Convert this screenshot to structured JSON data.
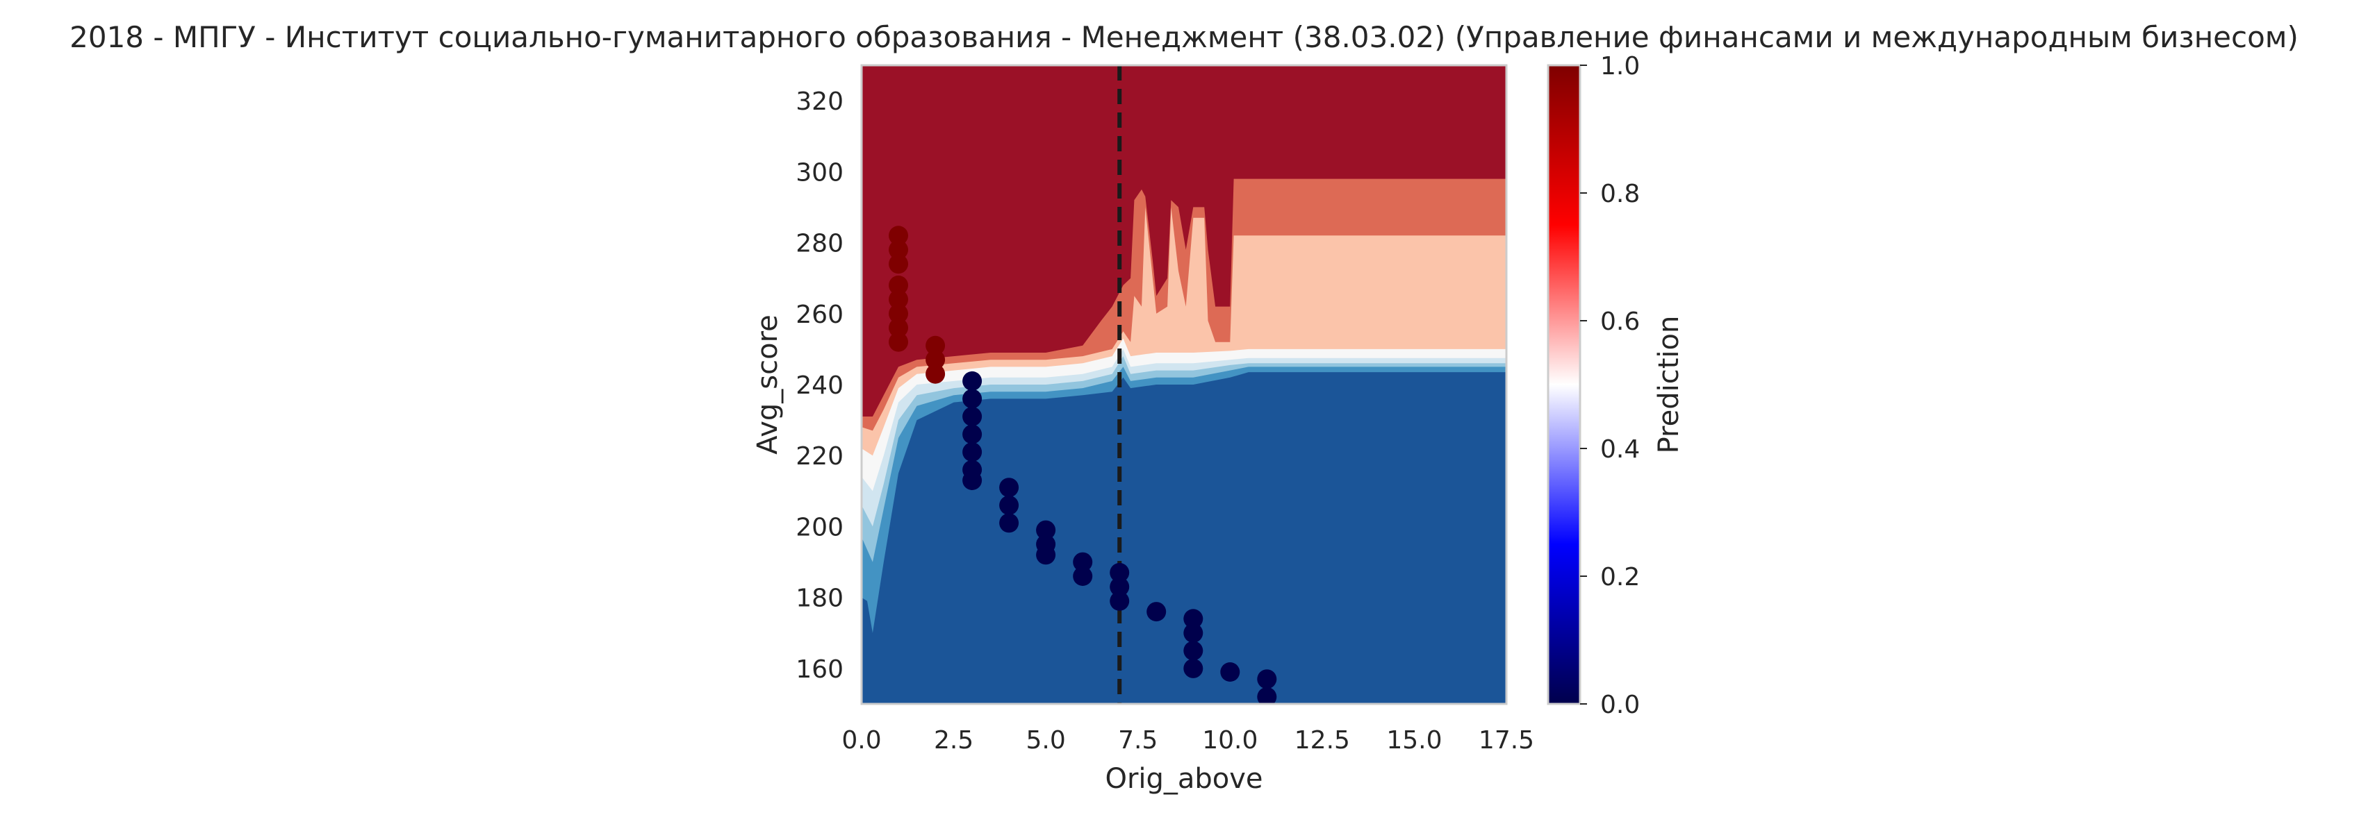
{
  "chart_data": {
    "type": "heatmap",
    "title": "2018 - МПГУ - Институт социально-гуманитарного образования - Менеджмент (38.03.02) (Управление финансами и международным бизнесом)",
    "xlabel": "Orig_above",
    "ylabel": "Avg_score",
    "xlim": [
      0,
      17.5
    ],
    "ylim": [
      150,
      330
    ],
    "xticks": [
      0.0,
      2.5,
      5.0,
      7.5,
      10.0,
      12.5,
      15.0,
      17.5
    ],
    "xtick_labels": [
      "0.0",
      "2.5",
      "5.0",
      "7.5",
      "10.0",
      "12.5",
      "15.0",
      "17.5"
    ],
    "yticks": [
      160,
      180,
      200,
      220,
      240,
      260,
      280,
      300,
      320
    ],
    "ytick_labels": [
      "160",
      "180",
      "200",
      "220",
      "240",
      "260",
      "280",
      "300",
      "320"
    ],
    "grid": false,
    "colorbar": {
      "label": "Prediction",
      "range": [
        0,
        1
      ],
      "ticks": [
        0.0,
        0.2,
        0.4,
        0.6,
        0.8,
        1.0
      ],
      "tick_labels": [
        "0.0",
        "0.2",
        "0.4",
        "0.6",
        "0.8",
        "1.0"
      ],
      "colors": [
        "#00004c",
        "#0000ff",
        "#ffffff",
        "#ff0000",
        "#7f0000"
      ]
    },
    "reference_line": {
      "x": 7,
      "style": "dashed",
      "color": "#1a1a1a"
    },
    "contour_bands": [
      {
        "name": "band-0.0-0.1",
        "color": "#1b5598",
        "boundary": [
          [
            0,
            180
          ],
          [
            0.15,
            179
          ],
          [
            0.3,
            170
          ],
          [
            0.6,
            190
          ],
          [
            1.0,
            215
          ],
          [
            1.5,
            230
          ],
          [
            2.5,
            235
          ],
          [
            3.5,
            236
          ],
          [
            5,
            236
          ],
          [
            6,
            237
          ],
          [
            6.8,
            238
          ],
          [
            7.1,
            242
          ],
          [
            7.3,
            239
          ],
          [
            8,
            240
          ],
          [
            9,
            240
          ],
          [
            10,
            242
          ],
          [
            10.5,
            243.5
          ],
          [
            12,
            243.5
          ],
          [
            15,
            243.5
          ],
          [
            17.5,
            243.5
          ]
        ]
      },
      {
        "name": "band-0.1-0.3",
        "color": "#4393c3",
        "boundary": [
          [
            0,
            197
          ],
          [
            0.3,
            190
          ],
          [
            0.6,
            205
          ],
          [
            1.0,
            225
          ],
          [
            1.5,
            234
          ],
          [
            2.5,
            237
          ],
          [
            3.5,
            238
          ],
          [
            5,
            238
          ],
          [
            6,
            239
          ],
          [
            6.8,
            241
          ],
          [
            7.1,
            245
          ],
          [
            7.3,
            241
          ],
          [
            8,
            242
          ],
          [
            9,
            242
          ],
          [
            10,
            244
          ],
          [
            10.5,
            245
          ],
          [
            12,
            245
          ],
          [
            15,
            245
          ],
          [
            17.5,
            245
          ]
        ]
      },
      {
        "name": "band-0.3-0.4",
        "color": "#92c5de",
        "boundary": [
          [
            0,
            206
          ],
          [
            0.3,
            200
          ],
          [
            0.6,
            212
          ],
          [
            1.0,
            230
          ],
          [
            1.5,
            237
          ],
          [
            2.5,
            239
          ],
          [
            3.5,
            240
          ],
          [
            5,
            240
          ],
          [
            6,
            241
          ],
          [
            6.8,
            243
          ],
          [
            7.1,
            248
          ],
          [
            7.3,
            243
          ],
          [
            8,
            244
          ],
          [
            9,
            244
          ],
          [
            10,
            245.5
          ],
          [
            10.5,
            246
          ],
          [
            12,
            246
          ],
          [
            15,
            246
          ],
          [
            17.5,
            246
          ]
        ]
      },
      {
        "name": "band-0.4-0.5",
        "color": "#d1e5f0",
        "boundary": [
          [
            0,
            214
          ],
          [
            0.3,
            210
          ],
          [
            0.6,
            220
          ],
          [
            1.0,
            235
          ],
          [
            1.5,
            240
          ],
          [
            2.5,
            241
          ],
          [
            3.5,
            242
          ],
          [
            5,
            242
          ],
          [
            6,
            243
          ],
          [
            6.8,
            245
          ],
          [
            7.1,
            250
          ],
          [
            7.3,
            245
          ],
          [
            8,
            246
          ],
          [
            9,
            246
          ],
          [
            10,
            247
          ],
          [
            10.5,
            247.5
          ],
          [
            12,
            247.5
          ],
          [
            15,
            247.5
          ],
          [
            17.5,
            247.5
          ]
        ]
      },
      {
        "name": "band-0.5-0.6",
        "color": "#f7f7f7",
        "boundary": [
          [
            0,
            222
          ],
          [
            0.3,
            220
          ],
          [
            0.6,
            228
          ],
          [
            1.0,
            239
          ],
          [
            1.5,
            243
          ],
          [
            2.5,
            244
          ],
          [
            3.5,
            245
          ],
          [
            5,
            245
          ],
          [
            6,
            246
          ],
          [
            6.8,
            248
          ],
          [
            7.1,
            253
          ],
          [
            7.3,
            248
          ],
          [
            8,
            249
          ],
          [
            9,
            249
          ],
          [
            10,
            249.5
          ],
          [
            10.5,
            250
          ],
          [
            12,
            250
          ],
          [
            15,
            250
          ],
          [
            17.5,
            250
          ]
        ]
      },
      {
        "name": "band-0.6-0.7",
        "color": "#fbc4aa",
        "boundary": [
          [
            0,
            228
          ],
          [
            0.3,
            227
          ],
          [
            0.6,
            233
          ],
          [
            1.0,
            242
          ],
          [
            1.5,
            245
          ],
          [
            2.5,
            246
          ],
          [
            3.5,
            247
          ],
          [
            5,
            247
          ],
          [
            6,
            248
          ],
          [
            6.8,
            250
          ],
          [
            7.1,
            255
          ],
          [
            7.3,
            252
          ],
          [
            7.4,
            265
          ],
          [
            7.6,
            262
          ],
          [
            7.7,
            290
          ],
          [
            7.9,
            270
          ],
          [
            8.0,
            260
          ],
          [
            8.3,
            262
          ],
          [
            8.4,
            290
          ],
          [
            8.6,
            272
          ],
          [
            8.8,
            262
          ],
          [
            9.0,
            287
          ],
          [
            9.3,
            287
          ],
          [
            9.4,
            258
          ],
          [
            9.6,
            252
          ],
          [
            10,
            252
          ],
          [
            10.1,
            282
          ],
          [
            12,
            282
          ],
          [
            15,
            282
          ],
          [
            17.5,
            282
          ]
        ]
      },
      {
        "name": "band-0.7-0.8",
        "color": "#dd6a55",
        "boundary": [
          [
            0,
            231
          ],
          [
            0.3,
            231
          ],
          [
            0.6,
            237
          ],
          [
            1.0,
            245
          ],
          [
            1.5,
            247
          ],
          [
            2.5,
            248
          ],
          [
            3.5,
            249
          ],
          [
            5,
            249
          ],
          [
            6,
            251
          ],
          [
            6.5,
            258
          ],
          [
            6.8,
            262
          ],
          [
            7.1,
            268
          ],
          [
            7.3,
            270
          ],
          [
            7.4,
            292
          ],
          [
            7.6,
            295
          ],
          [
            7.7,
            293
          ],
          [
            7.9,
            275
          ],
          [
            8.0,
            265
          ],
          [
            8.3,
            270
          ],
          [
            8.4,
            292
          ],
          [
            8.6,
            290
          ],
          [
            8.8,
            278
          ],
          [
            9.0,
            290
          ],
          [
            9.3,
            290
          ],
          [
            9.4,
            278
          ],
          [
            9.6,
            262
          ],
          [
            10,
            262
          ],
          [
            10.1,
            298
          ],
          [
            12,
            298
          ],
          [
            15,
            298
          ],
          [
            17.5,
            298
          ]
        ]
      }
    ],
    "background_color": "#9b1127",
    "scatter_high": {
      "color": "#7f0000",
      "points": [
        [
          1,
          282
        ],
        [
          1,
          278
        ],
        [
          1,
          274
        ],
        [
          1,
          268
        ],
        [
          1,
          264
        ],
        [
          1,
          260
        ],
        [
          1,
          256
        ],
        [
          1,
          252
        ],
        [
          2,
          251
        ],
        [
          2,
          247
        ],
        [
          2,
          243
        ]
      ]
    },
    "scatter_low": {
      "color": "#00004c",
      "points": [
        [
          3,
          241
        ],
        [
          3,
          236
        ],
        [
          3,
          231
        ],
        [
          3,
          226
        ],
        [
          3,
          221
        ],
        [
          3,
          216
        ],
        [
          3,
          213
        ],
        [
          4,
          211
        ],
        [
          4,
          206
        ],
        [
          4,
          201
        ],
        [
          5,
          199
        ],
        [
          5,
          195
        ],
        [
          5,
          192
        ],
        [
          6,
          190
        ],
        [
          6,
          186
        ],
        [
          7,
          187
        ],
        [
          7,
          183
        ],
        [
          7,
          179
        ],
        [
          8,
          176
        ],
        [
          9,
          174
        ],
        [
          9,
          170
        ],
        [
          9,
          165
        ],
        [
          9,
          160
        ],
        [
          10,
          159
        ],
        [
          11,
          157
        ],
        [
          11,
          152
        ]
      ]
    }
  }
}
